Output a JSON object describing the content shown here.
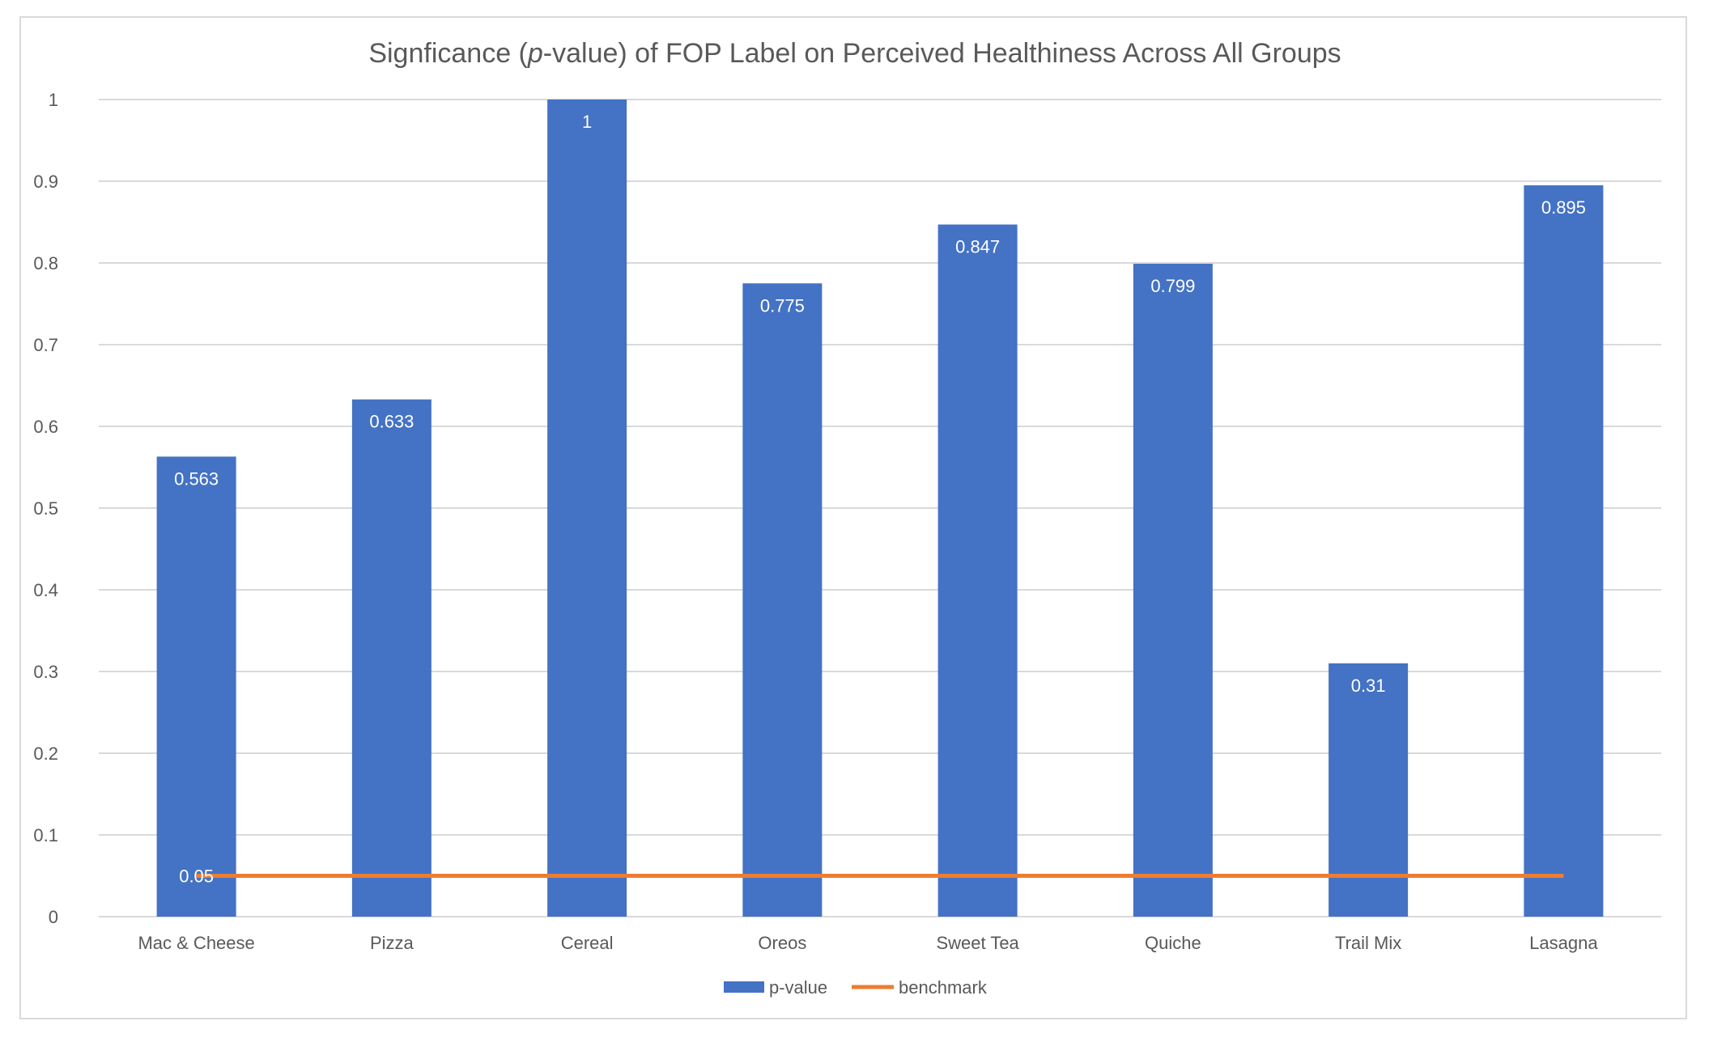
{
  "chart_data": {
    "type": "bar",
    "title_parts": [
      "Signficance (",
      "p",
      "-value) of FOP Label on Perceived Healthiness Across All Groups"
    ],
    "categories": [
      "Mac & Cheese",
      "Pizza",
      "Cereal",
      "Oreos",
      "Sweet Tea",
      "Quiche",
      "Trail Mix",
      "Lasagna"
    ],
    "series": [
      {
        "name": "p-value",
        "kind": "bar",
        "color": "#4472c4",
        "values": [
          0.563,
          0.633,
          1,
          0.775,
          0.847,
          0.799,
          0.31,
          0.895
        ],
        "data_labels": [
          "0.563",
          "0.633",
          "1",
          "0.775",
          "0.847",
          "0.799",
          "0.31",
          "0.895"
        ]
      },
      {
        "name": "benchmark",
        "kind": "line",
        "color": "#ed7d31",
        "values": [
          0.05,
          0.05,
          0.05,
          0.05,
          0.05,
          0.05,
          0.05,
          0.05
        ],
        "data_label": "0.05"
      }
    ],
    "ylim": [
      0,
      1
    ],
    "yticks": [
      "0",
      "0.1",
      "0.2",
      "0.3",
      "0.4",
      "0.5",
      "0.6",
      "0.7",
      "0.8",
      "0.9",
      "1"
    ],
    "gridlines": true,
    "legend_position": "bottom",
    "xlabel": "",
    "ylabel": ""
  }
}
